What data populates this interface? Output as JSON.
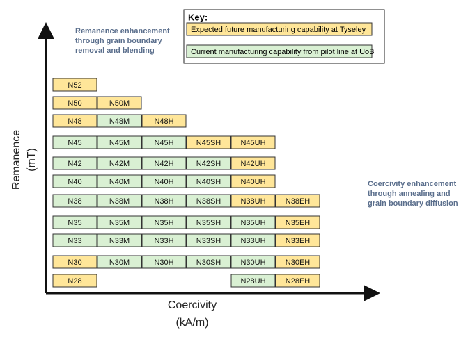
{
  "key": {
    "title": "Key:",
    "items": [
      {
        "label": "Expected future manufacturing capability at Tyseley",
        "color": "#ffe699"
      },
      {
        "label": "Current manufacturing capability from pilot line at UoB",
        "color": "#d9f0d3"
      }
    ]
  },
  "y_axis": {
    "lines": [
      "Remanence",
      "(mT)"
    ]
  },
  "x_axis": {
    "lines": [
      "Coercivity",
      "(kA/m)"
    ]
  },
  "annotations": [
    {
      "lines": [
        "Remanence enhancement",
        "through grain boundary",
        "removal and blending"
      ]
    },
    {
      "lines": [
        "Coercivity enhancement",
        "through annealing and",
        "grain boundary diffusion"
      ]
    }
  ],
  "rows": [
    [
      {
        "label": "N52",
        "color": "#ffe699"
      },
      null,
      null,
      null,
      null,
      null
    ],
    [
      {
        "label": "N50",
        "color": "#ffe699"
      },
      {
        "label": "N50M",
        "color": "#ffe699"
      },
      null,
      null,
      null,
      null
    ],
    [
      {
        "label": "N48",
        "color": "#ffe699"
      },
      {
        "label": "N48M",
        "color": "#d9f0d3"
      },
      {
        "label": "N48H",
        "color": "#ffe699"
      },
      null,
      null,
      null
    ],
    [
      {
        "label": "N45",
        "color": "#d9f0d3"
      },
      {
        "label": "N45M",
        "color": "#d9f0d3"
      },
      {
        "label": "N45H",
        "color": "#d9f0d3"
      },
      {
        "label": "N45SH",
        "color": "#ffe699"
      },
      {
        "label": "N45UH",
        "color": "#ffe699"
      },
      null
    ],
    [
      {
        "label": "N42",
        "color": "#d9f0d3"
      },
      {
        "label": "N42M",
        "color": "#d9f0d3"
      },
      {
        "label": "N42H",
        "color": "#d9f0d3"
      },
      {
        "label": "N42SH",
        "color": "#d9f0d3"
      },
      {
        "label": "N42UH",
        "color": "#ffe699"
      },
      null
    ],
    [
      {
        "label": "N40",
        "color": "#d9f0d3"
      },
      {
        "label": "N40M",
        "color": "#d9f0d3"
      },
      {
        "label": "N40H",
        "color": "#d9f0d3"
      },
      {
        "label": "N40SH",
        "color": "#d9f0d3"
      },
      {
        "label": "N40UH",
        "color": "#ffe699"
      },
      null
    ],
    [
      {
        "label": "N38",
        "color": "#d9f0d3"
      },
      {
        "label": "N38M",
        "color": "#d9f0d3"
      },
      {
        "label": "N38H",
        "color": "#d9f0d3"
      },
      {
        "label": "N38SH",
        "color": "#d9f0d3"
      },
      {
        "label": "N38UH",
        "color": "#ffe699"
      },
      {
        "label": "N38EH",
        "color": "#ffe699"
      }
    ],
    [
      {
        "label": "N35",
        "color": "#d9f0d3"
      },
      {
        "label": "N35M",
        "color": "#d9f0d3"
      },
      {
        "label": "N35H",
        "color": "#d9f0d3"
      },
      {
        "label": "N35SH",
        "color": "#d9f0d3"
      },
      {
        "label": "N35UH",
        "color": "#d9f0d3"
      },
      {
        "label": "N35EH",
        "color": "#ffe699"
      }
    ],
    [
      {
        "label": "N33",
        "color": "#d9f0d3"
      },
      {
        "label": "N33M",
        "color": "#d9f0d3"
      },
      {
        "label": "N33H",
        "color": "#d9f0d3"
      },
      {
        "label": "N33SH",
        "color": "#d9f0d3"
      },
      {
        "label": "N33UH",
        "color": "#d9f0d3"
      },
      {
        "label": "N33EH",
        "color": "#ffe699"
      }
    ],
    [
      {
        "label": "N30",
        "color": "#ffe699"
      },
      {
        "label": "N30M",
        "color": "#d9f0d3"
      },
      {
        "label": "N30H",
        "color": "#d9f0d3"
      },
      {
        "label": "N30SH",
        "color": "#d9f0d3"
      },
      {
        "label": "N30UH",
        "color": "#d9f0d3"
      },
      {
        "label": "N30EH",
        "color": "#ffe699"
      }
    ],
    [
      {
        "label": "N28",
        "color": "#ffe699"
      },
      null,
      null,
      null,
      {
        "label": "N28UH",
        "color": "#d9f0d3"
      },
      {
        "label": "N28EH",
        "color": "#ffe699"
      }
    ]
  ]
}
